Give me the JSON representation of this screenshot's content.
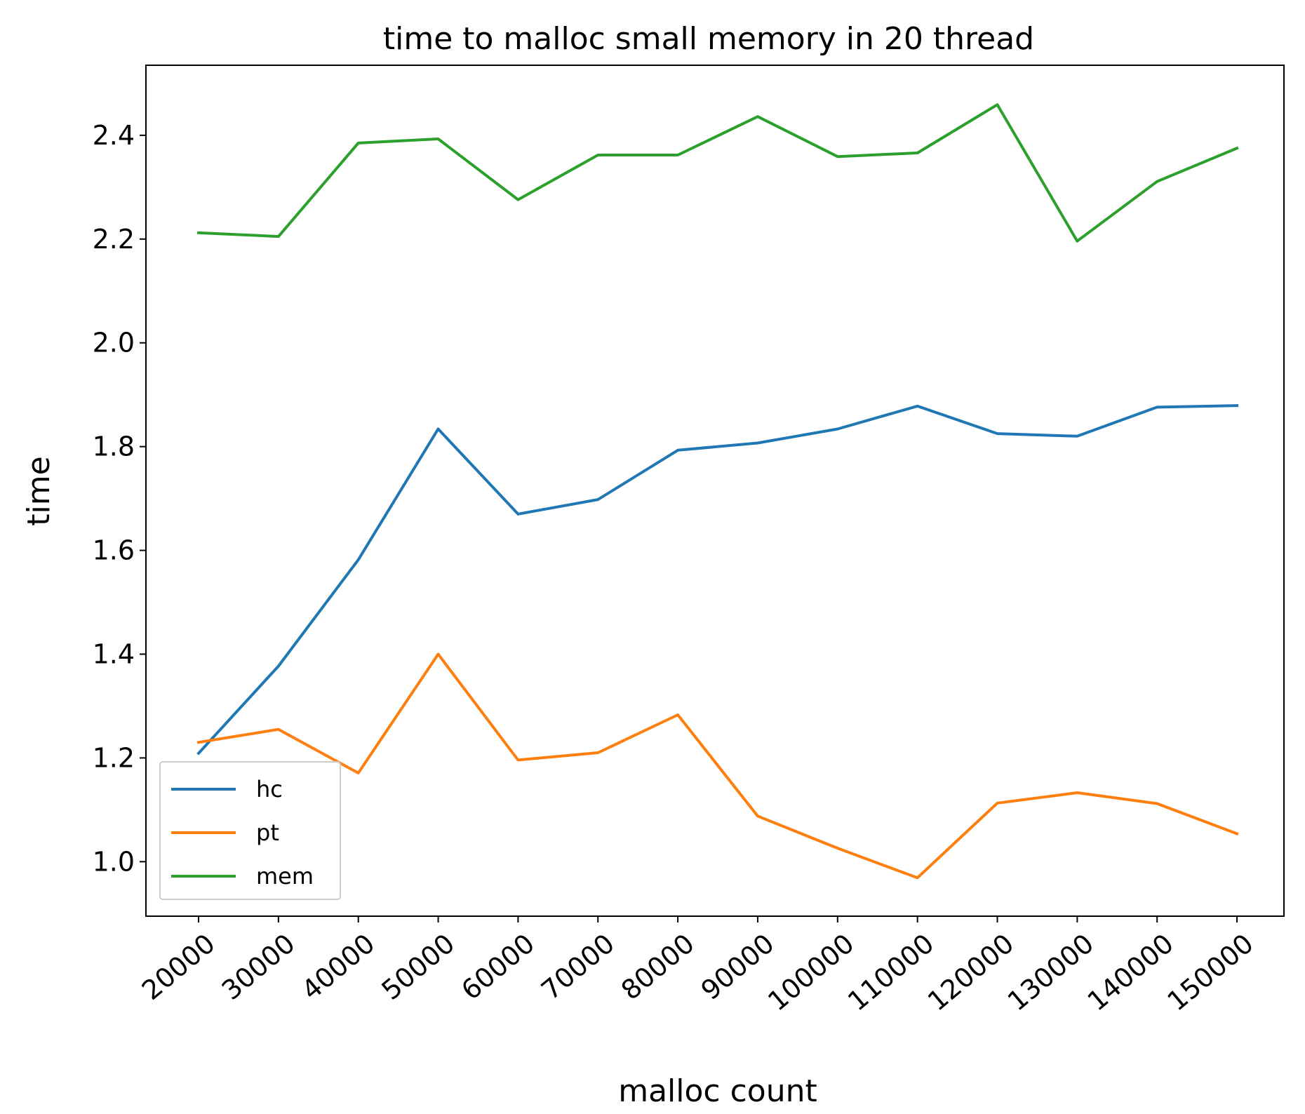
{
  "chart_data": {
    "type": "line",
    "title": "time to malloc small memory in 20 thread",
    "xlabel": "malloc count",
    "ylabel": "time",
    "x": [
      20000,
      30000,
      40000,
      50000,
      60000,
      70000,
      80000,
      90000,
      100000,
      110000,
      120000,
      130000,
      140000,
      150000
    ],
    "x_tick_labels": [
      "20000",
      "30000",
      "40000",
      "50000",
      "60000",
      "70000",
      "80000",
      "90000",
      "100000",
      "110000",
      "120000",
      "130000",
      "140000",
      "150000"
    ],
    "ylim": [
      0.895,
      2.535
    ],
    "y_ticks": [
      1.0,
      1.2,
      1.4,
      1.6,
      1.8,
      2.0,
      2.2,
      2.4
    ],
    "y_tick_labels": [
      "1.0",
      "1.2",
      "1.4",
      "1.6",
      "1.8",
      "2.0",
      "2.2",
      "2.4"
    ],
    "grid": false,
    "legend_position": "lower-left",
    "series": [
      {
        "name": "hc",
        "color": "#1f77b4",
        "values": [
          1.209,
          1.377,
          1.582,
          1.834,
          1.67,
          1.698,
          1.793,
          1.807,
          1.834,
          1.878,
          1.825,
          1.82,
          1.876,
          1.879
        ]
      },
      {
        "name": "pt",
        "color": "#ff7f0e",
        "values": [
          1.23,
          1.255,
          1.171,
          1.4,
          1.196,
          1.21,
          1.283,
          1.088,
          1.026,
          0.969,
          1.113,
          1.133,
          1.112,
          1.054
        ]
      },
      {
        "name": "mem",
        "color": "#2ca02c",
        "values": [
          2.212,
          2.205,
          2.385,
          2.393,
          2.276,
          2.362,
          2.362,
          2.436,
          2.359,
          2.366,
          2.459,
          2.196,
          2.311,
          2.375
        ]
      }
    ]
  }
}
